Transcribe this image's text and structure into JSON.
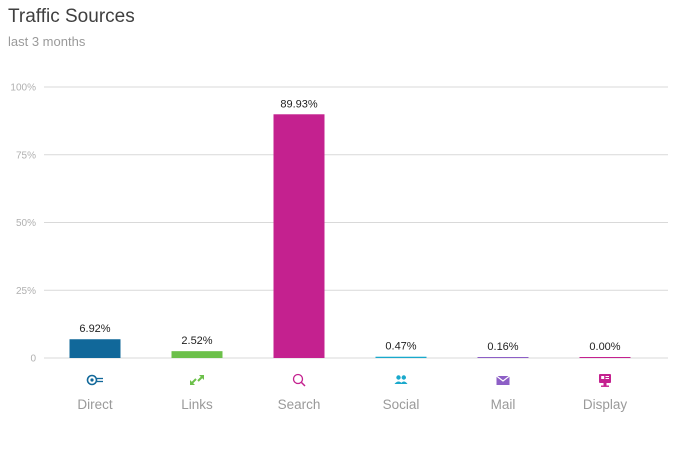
{
  "header": {
    "title": "Traffic Sources",
    "subtitle": "last 3 months"
  },
  "chart_data": {
    "type": "bar",
    "title": "Traffic Sources",
    "subtitle": "last 3 months",
    "categories": [
      "Direct",
      "Links",
      "Search",
      "Social",
      "Mail",
      "Display"
    ],
    "values": [
      6.92,
      2.52,
      89.93,
      0.47,
      0.16,
      0.0
    ],
    "value_labels": [
      "6.92%",
      "2.52%",
      "89.93%",
      "0.47%",
      "0.16%",
      "0.00%"
    ],
    "icons": [
      "direct-icon",
      "links-icon",
      "search-icon",
      "social-icon",
      "mail-icon",
      "display-icon"
    ],
    "colors": [
      "#11689a",
      "#6cc04a",
      "#c4218f",
      "#1aa9cc",
      "#8d5fc6",
      "#c4218f"
    ],
    "ylim": [
      0,
      100
    ],
    "yticks": [
      0,
      25,
      50,
      75,
      100
    ],
    "ytick_labels": [
      "0",
      "25%",
      "50%",
      "75%",
      "100%"
    ],
    "grid": true,
    "legend": "none"
  }
}
